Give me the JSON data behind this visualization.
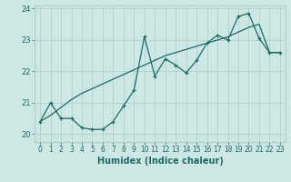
{
  "xlabel": "Humidex (Indice chaleur)",
  "bg_color": "#cde8e4",
  "grid_color": "#aacfcb",
  "line_color": "#1e6b5e",
  "xlim": [
    -0.5,
    23.5
  ],
  "ylim": [
    19.75,
    24.1
  ],
  "yticks": [
    20,
    21,
    22,
    23,
    24
  ],
  "xticks": [
    0,
    1,
    2,
    3,
    4,
    5,
    6,
    7,
    8,
    9,
    10,
    11,
    12,
    13,
    14,
    15,
    16,
    17,
    18,
    19,
    20,
    21,
    22,
    23
  ],
  "line1_x": [
    0,
    1,
    2,
    3,
    4,
    5,
    6,
    7,
    8,
    9,
    10,
    11,
    12,
    13,
    14,
    15,
    16,
    17,
    18,
    19,
    20,
    21,
    22,
    23
  ],
  "line1_y": [
    20.4,
    21.0,
    20.5,
    20.5,
    20.2,
    20.15,
    20.15,
    20.4,
    20.9,
    21.4,
    23.1,
    21.85,
    22.4,
    22.2,
    21.95,
    22.35,
    22.9,
    23.15,
    23.0,
    23.75,
    23.85,
    23.05,
    22.6,
    22.6
  ],
  "line2_x": [
    0,
    1,
    2,
    3,
    4,
    5,
    6,
    7,
    8,
    9,
    10,
    11,
    12,
    13,
    14,
    15,
    16,
    17,
    18,
    19,
    20,
    21,
    22,
    23
  ],
  "line2_y": [
    20.4,
    20.6,
    20.85,
    21.1,
    21.3,
    21.45,
    21.6,
    21.75,
    21.9,
    22.05,
    22.2,
    22.35,
    22.5,
    22.6,
    22.7,
    22.8,
    22.9,
    23.0,
    23.1,
    23.25,
    23.4,
    23.5,
    22.6,
    22.6
  ]
}
